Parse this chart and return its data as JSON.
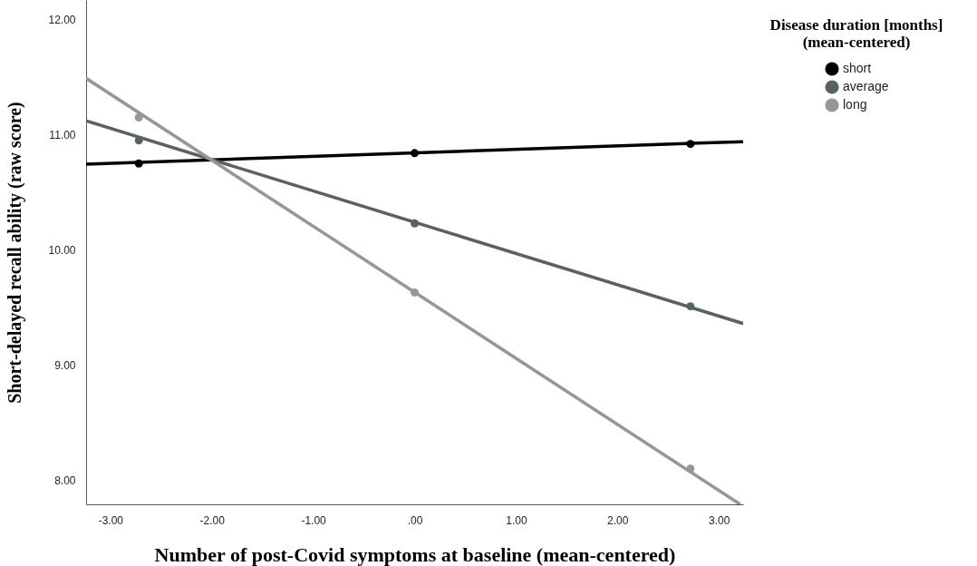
{
  "chart_data": {
    "type": "scatter",
    "xlabel": "Number of post-Covid symptoms at baseline (mean-centered)",
    "ylabel": "Short-delayed recall ability (raw score)",
    "legend_title": "Disease duration [months]\n(mean-centered)",
    "legend": "top right",
    "grid": false,
    "marker": "circle",
    "xlim": [
      -3.24,
      3.24
    ],
    "ylim": [
      7.79,
      12.17
    ],
    "xticks": [
      {
        "value": -3,
        "label": "-3.00"
      },
      {
        "value": -2,
        "label": "-2.00"
      },
      {
        "value": -1,
        "label": "-1.00"
      },
      {
        "value": 0,
        "label": ".00"
      },
      {
        "value": 1,
        "label": "1.00"
      },
      {
        "value": 2,
        "label": "2.00"
      },
      {
        "value": 3,
        "label": "3.00"
      }
    ],
    "yticks": [
      {
        "value": 8,
        "label": "8.00"
      },
      {
        "value": 9,
        "label": "9.00"
      },
      {
        "value": 10,
        "label": "10.00"
      },
      {
        "value": 11,
        "label": "11.00"
      },
      {
        "value": 12,
        "label": "12.00"
      }
    ],
    "series": [
      {
        "type": "line",
        "marker": "none",
        "color": "#000000",
        "x": [
          -3.24,
          3.24
        ],
        "values": [
          10.745,
          10.94
        ]
      },
      {
        "type": "line",
        "marker": "none",
        "color": "#59635e",
        "x": [
          -3.24,
          3.24
        ],
        "values": [
          11.12,
          9.36
        ]
      },
      {
        "type": "line",
        "marker": "none",
        "color": "#9a9596",
        "x": [
          -3.24,
          3.21
        ],
        "values": [
          11.49,
          7.79
        ]
      },
      {
        "name": "short",
        "color": "#000000",
        "x": [
          -2.72,
          0,
          2.72
        ],
        "values": [
          10.75,
          10.84,
          10.92
        ]
      },
      {
        "name": "average",
        "color": "#59635e",
        "x": [
          -2.72,
          0,
          2.72
        ],
        "values": [
          10.95,
          10.23,
          9.51
        ]
      },
      {
        "name": "long",
        "color": "#9a9596",
        "x": [
          -2.72,
          0,
          2.72
        ],
        "values": [
          11.15,
          9.63,
          8.1
        ]
      }
    ]
  }
}
